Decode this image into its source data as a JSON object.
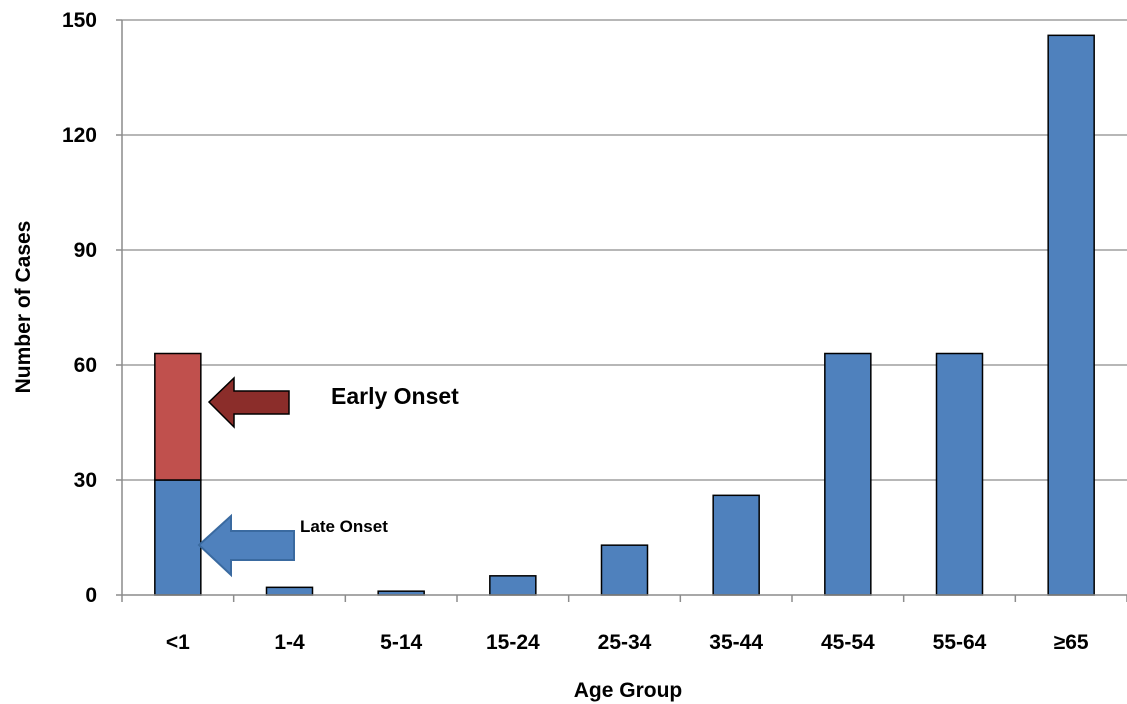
{
  "chart_data": {
    "type": "bar",
    "stacked": true,
    "xlabel": "Age Group",
    "ylabel": "Number of Cases",
    "ylim": [
      0,
      150
    ],
    "yticks": [
      0,
      30,
      60,
      90,
      120,
      150
    ],
    "grid": true,
    "categories": [
      "<1",
      "1-4",
      "5-14",
      "15-24",
      "25-34",
      "35-44",
      "45-54",
      "55-64",
      "≥65"
    ],
    "series": [
      {
        "values": [
          30,
          2,
          1,
          5,
          13,
          26,
          63,
          63,
          146
        ],
        "color": "#4f81bd"
      },
      {
        "values": [
          33,
          0,
          0,
          0,
          0,
          0,
          0,
          0,
          0
        ],
        "color": "#c0504d"
      }
    ],
    "annotations": [
      {
        "text": "Early Onset",
        "arrow_color": "#8b2d2a"
      },
      {
        "text": "Late Onset",
        "arrow_color": "#4f81bd"
      }
    ]
  }
}
